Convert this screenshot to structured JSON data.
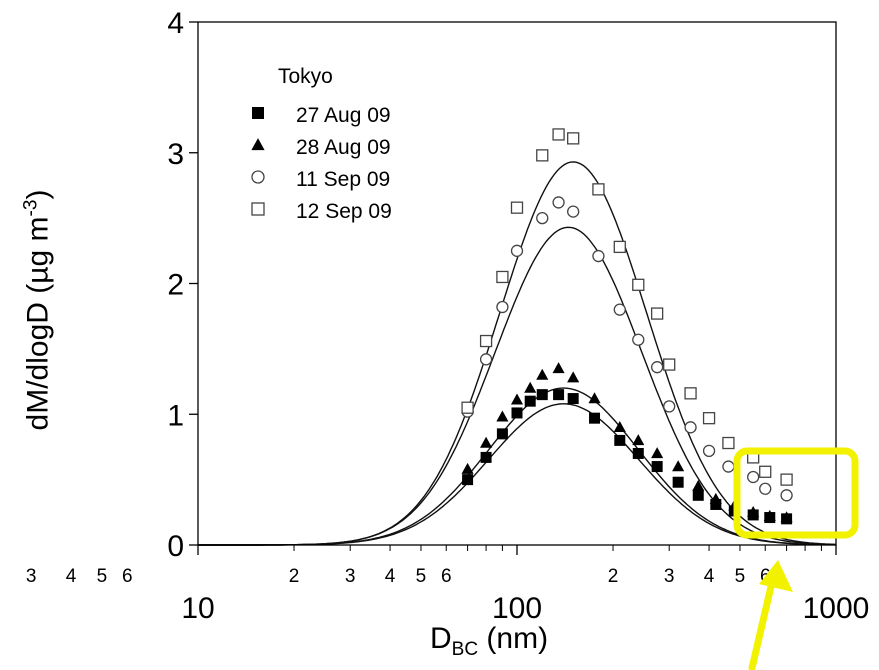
{
  "chart_data": {
    "type": "scatter",
    "x_scale": "log",
    "xlim": [
      10,
      1000
    ],
    "ylim": [
      0,
      4
    ],
    "y_ticks": [
      0,
      1,
      2,
      3,
      4
    ],
    "x_major_ticks": [
      10,
      100,
      1000
    ],
    "x_minor_ticks": [
      2,
      3,
      4,
      5,
      6,
      20,
      30,
      40,
      50,
      60,
      200,
      300,
      400,
      500,
      600
    ],
    "x_minor_labels": [
      "2",
      "3",
      "4",
      "5",
      "6",
      "2",
      "3",
      "4",
      "5",
      "6",
      "2",
      "3",
      "4",
      "5",
      "6"
    ],
    "ylabel_main": "dM/dlogD (µg m",
    "ylabel_sup": "-3",
    "ylabel_end": ")",
    "xlabel_main": "D",
    "xlabel_sub": "BC",
    "xlabel_end": " (nm)",
    "legend_title": "Tokyo",
    "legend_position": "top-left",
    "grid": false,
    "series": [
      {
        "name": "27 Aug 09",
        "marker": "filled-square",
        "x": [
          70,
          80,
          90,
          100,
          110,
          120,
          135,
          150,
          175,
          210,
          240,
          275,
          320,
          370,
          420,
          480,
          550,
          620,
          700
        ],
        "y": [
          0.5,
          0.67,
          0.85,
          1.01,
          1.1,
          1.15,
          1.15,
          1.12,
          0.97,
          0.8,
          0.7,
          0.6,
          0.48,
          0.38,
          0.31,
          0.26,
          0.23,
          0.21,
          0.2
        ],
        "fit": {
          "peak_x": 140,
          "peak_y": 1.08,
          "sigma_log10": 0.235
        }
      },
      {
        "name": "28 Aug 09",
        "marker": "filled-triangle",
        "x": [
          70,
          80,
          90,
          100,
          110,
          120,
          135,
          150,
          175,
          210,
          240,
          275,
          320,
          370,
          420,
          480,
          550,
          620,
          700
        ],
        "y": [
          0.58,
          0.78,
          0.98,
          1.11,
          1.2,
          1.3,
          1.35,
          1.28,
          1.12,
          0.9,
          0.8,
          0.7,
          0.6,
          0.45,
          0.35,
          0.3,
          0.25,
          0.22,
          0.21
        ],
        "fit": {
          "peak_x": 140,
          "peak_y": 1.2,
          "sigma_log10": 0.235
        }
      },
      {
        "name": "11 Sep 09",
        "marker": "open-circle",
        "x": [
          70,
          80,
          90,
          100,
          120,
          135,
          150,
          180,
          210,
          240,
          275,
          300,
          350,
          400,
          460,
          550,
          600,
          700
        ],
        "y": [
          1.02,
          1.42,
          1.82,
          2.25,
          2.5,
          2.62,
          2.55,
          2.21,
          1.8,
          1.57,
          1.36,
          1.06,
          0.9,
          0.72,
          0.6,
          0.52,
          0.43,
          0.38
        ],
        "fit": {
          "peak_x": 145,
          "peak_y": 2.43,
          "sigma_log10": 0.23
        }
      },
      {
        "name": "12 Sep 09",
        "marker": "open-square",
        "x": [
          70,
          80,
          90,
          100,
          120,
          135,
          150,
          180,
          210,
          240,
          275,
          300,
          350,
          400,
          460,
          550,
          600,
          700
        ],
        "y": [
          1.05,
          1.56,
          2.05,
          2.58,
          2.98,
          3.14,
          3.11,
          2.72,
          2.28,
          1.99,
          1.77,
          1.38,
          1.16,
          0.97,
          0.78,
          0.67,
          0.56,
          0.5
        ],
        "fit": {
          "peak_x": 150,
          "peak_y": 2.93,
          "sigma_log10": 0.23
        }
      }
    ],
    "highlight_color": "#f2f200"
  }
}
